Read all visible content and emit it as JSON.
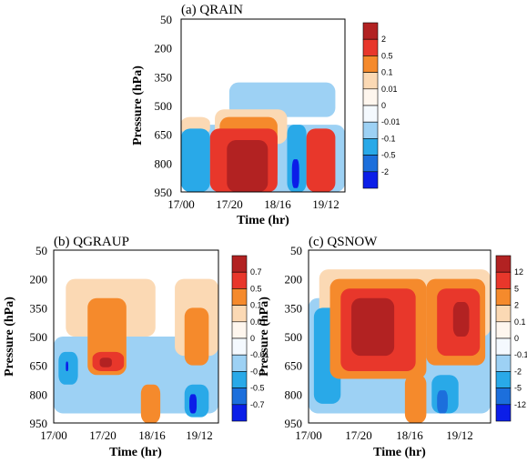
{
  "colors": {
    "pos4": "#b22222",
    "pos3": "#e8372b",
    "pos2": "#f58a2c",
    "pos1": "#fbd9b4",
    "zero_pos": "#fef6ee",
    "zero_neg": "#f4f9fe",
    "neg1": "#9dd1f4",
    "neg2": "#29a9e8",
    "neg3": "#1c6fdc",
    "neg4": "#0b1ee8"
  },
  "chart_data": [
    {
      "type": "heatmap",
      "title": "(a) QRAIN",
      "xlabel": "Time (hr)",
      "ylabel": "Pressure (hPa)",
      "x_ticks": [
        "17/00",
        "17/20",
        "18/16",
        "19/12"
      ],
      "y_ticks": [
        "50",
        "200",
        "350",
        "500",
        "650",
        "800",
        "950"
      ],
      "colorbar": [
        "2",
        "0.5",
        "0.1",
        "0.01",
        "0",
        "-0.01",
        "-0.1",
        "-0.5",
        "-2"
      ],
      "features": [
        {
          "level": "neg1",
          "t0": 0,
          "t1": 68,
          "p_top": 600,
          "p_bot": 950
        },
        {
          "level": "pos1",
          "t0": 0,
          "t1": 12,
          "p_top": 560,
          "p_bot": 650
        },
        {
          "level": "neg2",
          "t0": 0,
          "t1": 12,
          "p_top": 620,
          "p_bot": 950
        },
        {
          "level": "neg1",
          "t0": 20,
          "t1": 64,
          "p_top": 380,
          "p_bot": 560
        },
        {
          "level": "pos1",
          "t0": 14,
          "t1": 44,
          "p_top": 520,
          "p_bot": 700
        },
        {
          "level": "pos2",
          "t0": 16,
          "t1": 40,
          "p_top": 560,
          "p_bot": 900
        },
        {
          "level": "pos3",
          "t0": 12,
          "t1": 40,
          "p_top": 620,
          "p_bot": 950
        },
        {
          "level": "pos4",
          "t0": 19,
          "t1": 36,
          "p_top": 680,
          "p_bot": 950
        },
        {
          "level": "neg2",
          "t0": 44,
          "t1": 52,
          "p_top": 600,
          "p_bot": 950
        },
        {
          "level": "neg4",
          "t0": 46,
          "t1": 49,
          "p_top": 780,
          "p_bot": 930
        },
        {
          "level": "pos3",
          "t0": 52,
          "t1": 64,
          "p_top": 620,
          "p_bot": 950
        }
      ]
    },
    {
      "type": "heatmap",
      "title": "(b) QGRAUP",
      "xlabel": "Time (hr)",
      "ylabel": "Pressure (hPa)",
      "x_ticks": [
        "17/00",
        "17/20",
        "18/16",
        "19/12"
      ],
      "y_ticks": [
        "50",
        "200",
        "350",
        "500",
        "650",
        "800",
        "950"
      ],
      "colorbar": [
        "0.7",
        "0.5",
        "0.1",
        "0.01",
        "0",
        "-0.01",
        "-0.1",
        "-0.5",
        "-0.7"
      ],
      "features": [
        {
          "level": "neg1",
          "t0": 0,
          "t1": 68,
          "p_top": 500,
          "p_bot": 900
        },
        {
          "level": "pos1",
          "t0": 5,
          "t1": 42,
          "p_top": 200,
          "p_bot": 500
        },
        {
          "level": "pos2",
          "t0": 14,
          "t1": 30,
          "p_top": 300,
          "p_bot": 700
        },
        {
          "level": "pos3",
          "t0": 16,
          "t1": 29,
          "p_top": 580,
          "p_bot": 680
        },
        {
          "level": "pos4",
          "t0": 19,
          "t1": 24,
          "p_top": 610,
          "p_bot": 660
        },
        {
          "level": "neg2",
          "t0": 2,
          "t1": 10,
          "p_top": 580,
          "p_bot": 750
        },
        {
          "level": "neg4",
          "t0": 5,
          "t1": 6,
          "p_top": 630,
          "p_bot": 680
        },
        {
          "level": "pos2",
          "t0": 36,
          "t1": 44,
          "p_top": 750,
          "p_bot": 950
        },
        {
          "level": "pos1",
          "t0": 50,
          "t1": 68,
          "p_top": 200,
          "p_bot": 600
        },
        {
          "level": "pos2",
          "t0": 54,
          "t1": 64,
          "p_top": 350,
          "p_bot": 650
        },
        {
          "level": "neg2",
          "t0": 54,
          "t1": 64,
          "p_top": 750,
          "p_bot": 920
        },
        {
          "level": "neg4",
          "t0": 56,
          "t1": 59,
          "p_top": 800,
          "p_bot": 900
        }
      ]
    },
    {
      "type": "heatmap",
      "title": "(c) QSNOW",
      "xlabel": "Time (hr)",
      "ylabel": "Pressure (hPa)",
      "x_ticks": [
        "17/00",
        "17/20",
        "18/16",
        "19/12"
      ],
      "y_ticks": [
        "50",
        "200",
        "350",
        "500",
        "650",
        "800",
        "950"
      ],
      "colorbar": [
        "12",
        "5",
        "2",
        "0.1",
        "0",
        "-0.1",
        "-2",
        "-5",
        "-12"
      ],
      "features": [
        {
          "level": "neg1",
          "t0": 0,
          "t1": 68,
          "p_top": 300,
          "p_bot": 900
        },
        {
          "level": "pos1",
          "t0": 4,
          "t1": 68,
          "p_top": 150,
          "p_bot": 500
        },
        {
          "level": "neg2",
          "t0": 2,
          "t1": 12,
          "p_top": 350,
          "p_bot": 850
        },
        {
          "level": "pos2",
          "t0": 8,
          "t1": 44,
          "p_top": 200,
          "p_bot": 720
        },
        {
          "level": "pos3",
          "t0": 12,
          "t1": 40,
          "p_top": 250,
          "p_bot": 680
        },
        {
          "level": "pos4",
          "t0": 16,
          "t1": 32,
          "p_top": 300,
          "p_bot": 600
        },
        {
          "level": "pos2",
          "t0": 44,
          "t1": 66,
          "p_top": 200,
          "p_bot": 650
        },
        {
          "level": "pos3",
          "t0": 48,
          "t1": 64,
          "p_top": 250,
          "p_bot": 600
        },
        {
          "level": "pos4",
          "t0": 54,
          "t1": 60,
          "p_top": 320,
          "p_bot": 500
        },
        {
          "level": "pos2",
          "t0": 36,
          "t1": 44,
          "p_top": 700,
          "p_bot": 950
        },
        {
          "level": "neg2",
          "t0": 46,
          "t1": 56,
          "p_top": 700,
          "p_bot": 900
        },
        {
          "level": "neg3",
          "t0": 48,
          "t1": 52,
          "p_top": 780,
          "p_bot": 900
        }
      ]
    }
  ]
}
